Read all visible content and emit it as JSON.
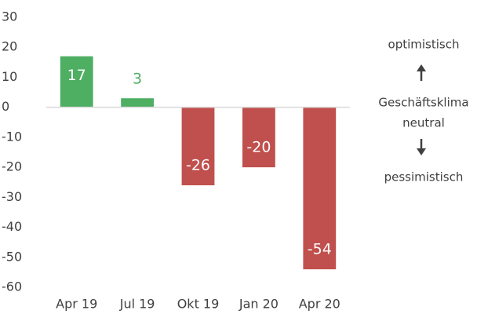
{
  "chart_data": {
    "type": "bar",
    "categories": [
      "Apr 19",
      "Jul 19",
      "Okt 19",
      "Jan 20",
      "Apr 20"
    ],
    "values": [
      17,
      3,
      -26,
      -20,
      -54
    ],
    "colors": [
      "#4eae62",
      "#4eae62",
      "#c0504d",
      "#c0504d",
      "#c0504d"
    ],
    "ylim": [
      -60,
      30
    ],
    "yticks": [
      30,
      20,
      10,
      0,
      -10,
      -20,
      -30,
      -40,
      -50,
      -60
    ],
    "grid": false,
    "annotations": [
      "optimistisch",
      "Geschäftsklima",
      "neutral",
      "pessimistisch"
    ]
  }
}
